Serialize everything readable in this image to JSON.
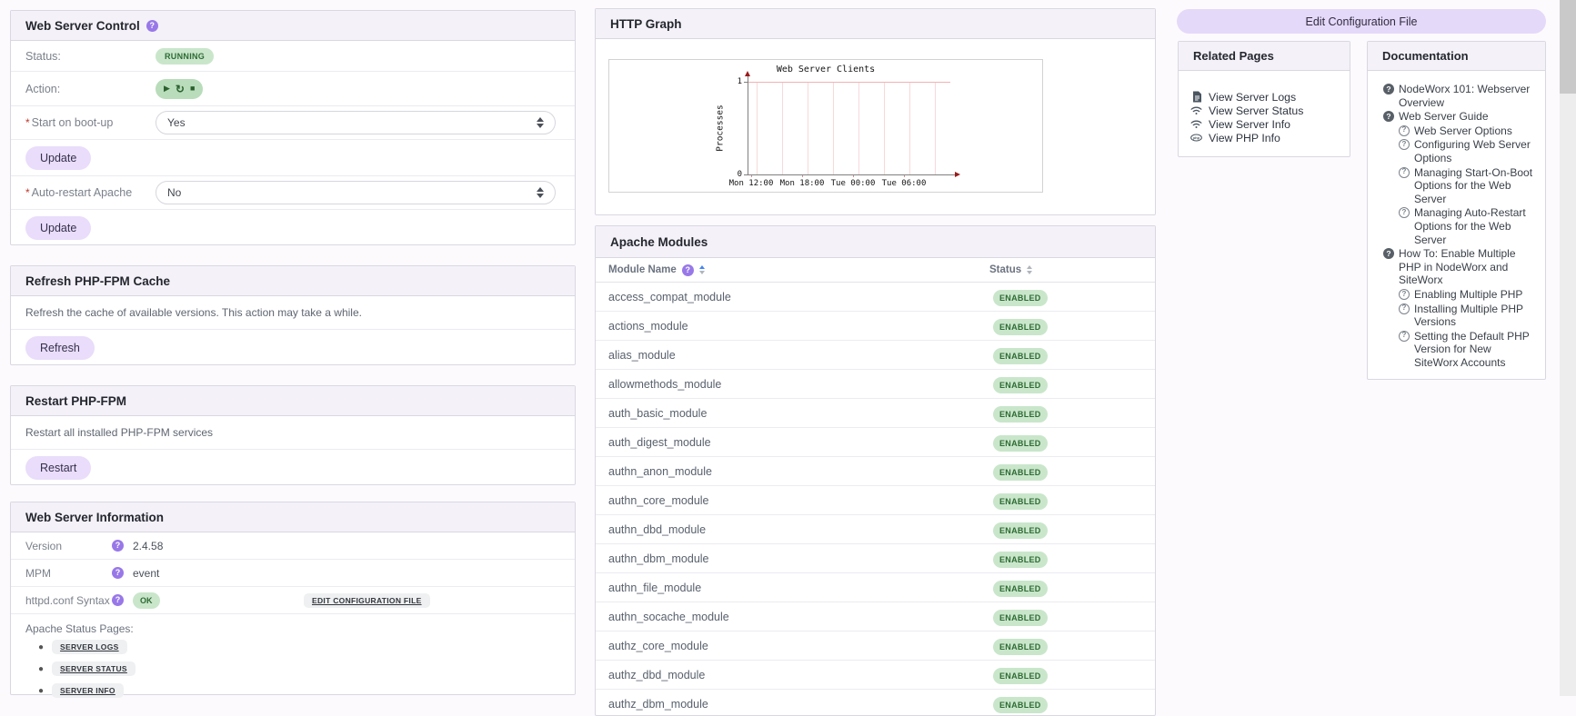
{
  "colors": {
    "accent_purple": "#e5d9f9",
    "panel_header_bg": "#f4f1f9",
    "badge_green_bg": "#c9e6cb",
    "badge_green_text": "#2e6b33",
    "help_icon_purple": "#9878e8",
    "sort_active_blue": "#4285f4",
    "graph_axis_red": "#9a1b1b"
  },
  "web_server_control": {
    "title": "Web Server Control",
    "status_label": "Status:",
    "status_value": "RUNNING",
    "action_label": "Action:",
    "boot_label": "Start on boot-up",
    "boot_value": "Yes",
    "update_label": "Update",
    "autorestart_label": "Auto-restart Apache",
    "autorestart_value": "No",
    "update2_label": "Update"
  },
  "refresh_cache": {
    "title": "Refresh PHP-FPM Cache",
    "description": "Refresh the cache of available versions. This action may take a while.",
    "button": "Refresh"
  },
  "restart_fpm": {
    "title": "Restart PHP-FPM",
    "description": "Restart all installed PHP-FPM services",
    "button": "Restart"
  },
  "server_info": {
    "title": "Web Server Information",
    "version_label": "Version",
    "version_value": "2.4.58",
    "mpm_label": "MPM",
    "mpm_value": "event",
    "syntax_label": "httpd.conf Syntax",
    "syntax_value": "OK",
    "edit_link": "EDIT CONFIGURATION FILE",
    "status_pages_label": "Apache Status Pages:",
    "status_pages": [
      {
        "label": "SERVER LOGS"
      },
      {
        "label": "SERVER STATUS"
      },
      {
        "label": "SERVER INFO"
      }
    ]
  },
  "http_graph": {
    "title": "HTTP Graph"
  },
  "chart_data": {
    "type": "line",
    "title": "Web Server Clients",
    "xlabel": "",
    "ylabel": "Processes",
    "ylim": [
      0,
      1
    ],
    "yticks": [
      "1",
      "0"
    ],
    "xticks": [
      "Mon 12:00",
      "Mon 18:00",
      "Tue 00:00",
      "Tue 06:00"
    ],
    "grid": true,
    "legend": false,
    "series": []
  },
  "apache_modules": {
    "title": "Apache Modules",
    "name_column": "Module Name",
    "status_column": "Status",
    "sorted_by": "Module Name",
    "sort_direction": "asc",
    "rows": [
      {
        "name": "access_compat_module",
        "status": "ENABLED"
      },
      {
        "name": "actions_module",
        "status": "ENABLED"
      },
      {
        "name": "alias_module",
        "status": "ENABLED"
      },
      {
        "name": "allowmethods_module",
        "status": "ENABLED"
      },
      {
        "name": "auth_basic_module",
        "status": "ENABLED"
      },
      {
        "name": "auth_digest_module",
        "status": "ENABLED"
      },
      {
        "name": "authn_anon_module",
        "status": "ENABLED"
      },
      {
        "name": "authn_core_module",
        "status": "ENABLED"
      },
      {
        "name": "authn_dbd_module",
        "status": "ENABLED"
      },
      {
        "name": "authn_dbm_module",
        "status": "ENABLED"
      },
      {
        "name": "authn_file_module",
        "status": "ENABLED"
      },
      {
        "name": "authn_socache_module",
        "status": "ENABLED"
      },
      {
        "name": "authz_core_module",
        "status": "ENABLED"
      },
      {
        "name": "authz_dbd_module",
        "status": "ENABLED"
      },
      {
        "name": "authz_dbm_module",
        "status": "ENABLED"
      }
    ]
  },
  "edit_config_button": {
    "label": "Edit Configuration File"
  },
  "related_pages": {
    "title": "Related Pages",
    "items": [
      {
        "icon": "file-icon",
        "label": "View Server Logs"
      },
      {
        "icon": "wifi-icon",
        "label": "View Server Status"
      },
      {
        "icon": "wifi-icon",
        "label": "View Server Info"
      },
      {
        "icon": "php-icon",
        "label": "View PHP Info"
      }
    ]
  },
  "documentation": {
    "title": "Documentation",
    "items": [
      {
        "level": 0,
        "icon": "question-filled-icon",
        "label": "NodeWorx 101: Webserver Overview"
      },
      {
        "level": 0,
        "icon": "question-filled-icon",
        "label": "Web Server Guide"
      },
      {
        "level": 1,
        "icon": "question-outline-icon",
        "label": "Web Server Options"
      },
      {
        "level": 1,
        "icon": "question-outline-icon",
        "label": "Configuring Web Server Options"
      },
      {
        "level": 1,
        "icon": "question-outline-icon",
        "label": "Managing Start-On-Boot Options for the Web Server"
      },
      {
        "level": 1,
        "icon": "question-outline-icon",
        "label": "Managing Auto-Restart Options for the Web Server"
      },
      {
        "level": 0,
        "icon": "question-filled-icon",
        "label": "How To: Enable Multiple PHP in NodeWorx and SiteWorx"
      },
      {
        "level": 1,
        "icon": "question-outline-icon",
        "label": "Enabling Multiple PHP"
      },
      {
        "level": 1,
        "icon": "question-outline-icon",
        "label": "Installing Multiple PHP Versions"
      },
      {
        "level": 1,
        "icon": "question-outline-icon",
        "label": "Setting the Default PHP Version for New SiteWorx Accounts"
      }
    ]
  }
}
